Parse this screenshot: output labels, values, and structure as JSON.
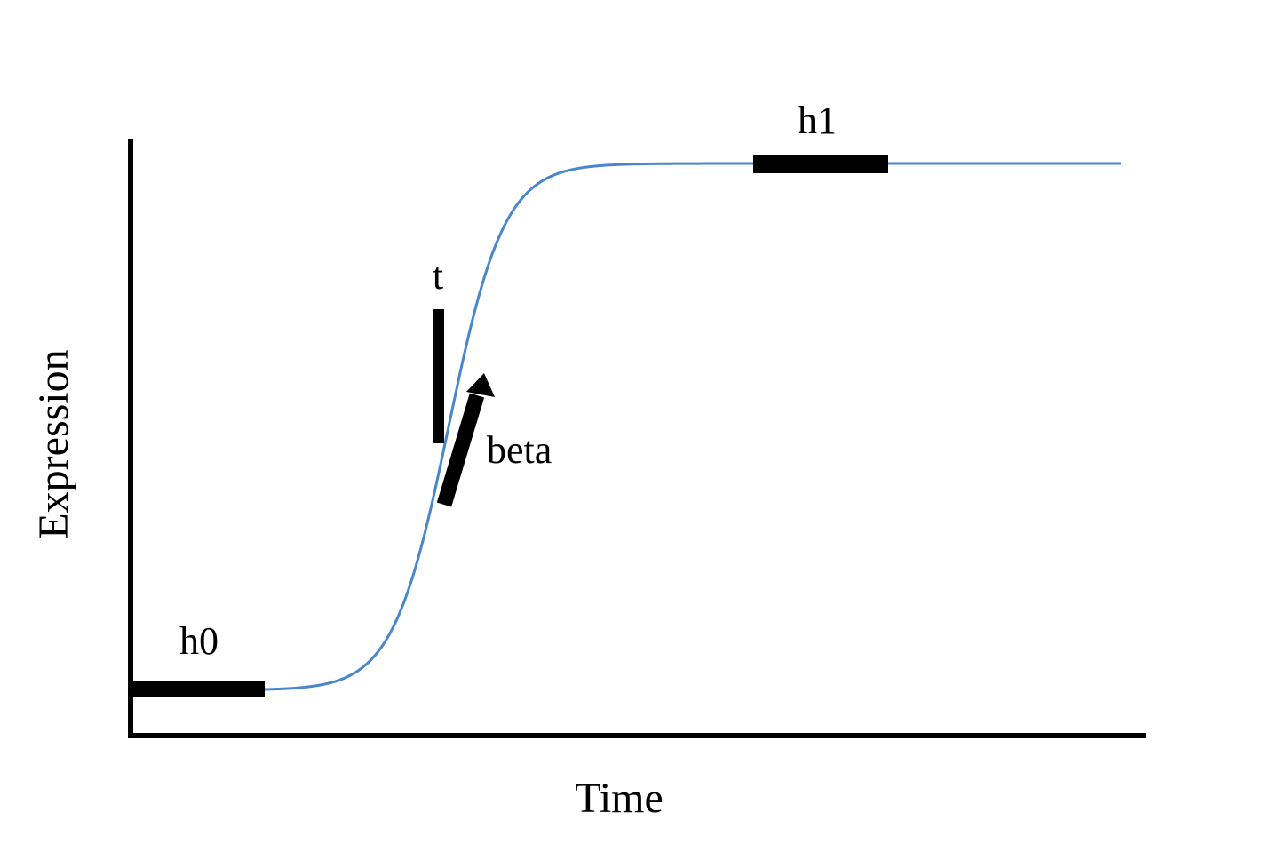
{
  "diagram": {
    "x_axis_label": "Time",
    "y_axis_label": "Expression",
    "curve_color": "#4a86cf",
    "marker_color": "#000000",
    "curve_shape": "sigmoid",
    "parameters": [
      {
        "name": "h0",
        "meaning": "baseline level (lower plateau)"
      },
      {
        "name": "h1",
        "meaning": "upper plateau level"
      },
      {
        "name": "t",
        "meaning": "inflection time"
      },
      {
        "name": "beta",
        "meaning": "slope at inflection"
      }
    ],
    "labels": {
      "h0": "h0",
      "h1": "h1",
      "t": "t",
      "beta": "beta"
    }
  }
}
